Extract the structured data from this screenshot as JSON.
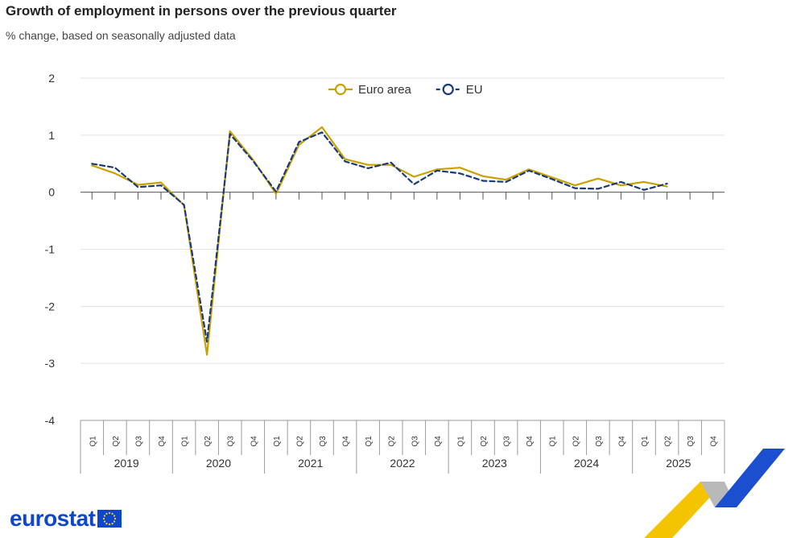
{
  "header": {
    "title": "Growth of employment in persons over the previous quarter",
    "subtitle": "% change, based on seasonally adjusted data"
  },
  "logo": {
    "text": "eurostat",
    "flag_icon": "eu-flag-icon"
  },
  "colors": {
    "euro_area": "#c9a100",
    "eu": "#1a3a7a",
    "grid": "#e3e3e3",
    "axis": "#9a9a9a"
  },
  "chart_data": {
    "type": "line",
    "x": [
      "2019-Q1",
      "2019-Q2",
      "2019-Q3",
      "2019-Q4",
      "2020-Q1",
      "2020-Q2",
      "2020-Q3",
      "2020-Q4",
      "2021-Q1",
      "2021-Q2",
      "2021-Q3",
      "2021-Q4",
      "2022-Q1",
      "2022-Q2",
      "2022-Q3",
      "2022-Q4",
      "2023-Q1",
      "2023-Q2",
      "2023-Q3",
      "2023-Q4",
      "2024-Q1",
      "2024-Q2",
      "2024-Q3",
      "2024-Q4",
      "2025-Q1",
      "2025-Q2",
      "2025-Q3",
      "2025-Q4"
    ],
    "quarter_labels": [
      "Q1",
      "Q2",
      "Q3",
      "Q4"
    ],
    "years": [
      "2019",
      "2020",
      "2021",
      "2022",
      "2023",
      "2024",
      "2025"
    ],
    "ylim": [
      -4,
      2
    ],
    "yticks": [
      "2",
      "1",
      "0",
      "-1",
      "-2",
      "-3",
      "-4"
    ],
    "grid": true,
    "legend_position": "top-center",
    "series": [
      {
        "name": "Euro area",
        "style": "solid",
        "color": "#c9a100",
        "values": [
          0.47,
          0.33,
          0.13,
          0.17,
          -0.23,
          -2.85,
          1.07,
          0.57,
          -0.03,
          0.83,
          1.14,
          0.58,
          0.48,
          0.48,
          0.27,
          0.4,
          0.43,
          0.28,
          0.22,
          0.4,
          0.26,
          0.12,
          0.24,
          0.12,
          0.18,
          0.1,
          null,
          null
        ]
      },
      {
        "name": "EU",
        "style": "dashed",
        "color": "#1a3a7a",
        "values": [
          0.5,
          0.43,
          0.09,
          0.12,
          -0.22,
          -2.62,
          1.02,
          0.55,
          0.01,
          0.88,
          1.05,
          0.54,
          0.42,
          0.52,
          0.14,
          0.38,
          0.33,
          0.2,
          0.18,
          0.38,
          0.23,
          0.07,
          0.06,
          0.18,
          0.04,
          0.15,
          null,
          null
        ]
      }
    ]
  }
}
